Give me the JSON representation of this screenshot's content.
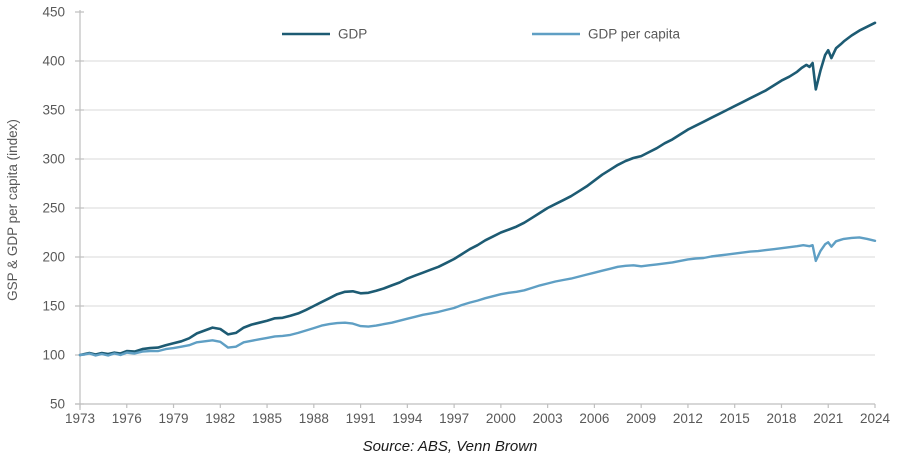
{
  "figure": {
    "source_caption": "Source: ABS, Venn Brown"
  },
  "chart_data": {
    "type": "line",
    "title": "",
    "xlabel": "",
    "ylabel": "GSP & GDP per capita (index)",
    "ylim": [
      50,
      450
    ],
    "ytick_step": 50,
    "yticks": [
      50,
      100,
      150,
      200,
      250,
      300,
      350,
      400,
      450
    ],
    "xlim": [
      1973,
      2024
    ],
    "xticks": [
      1973,
      1976,
      1979,
      1982,
      1985,
      1988,
      1991,
      1994,
      1997,
      2000,
      2003,
      2006,
      2009,
      2012,
      2015,
      2018,
      2021,
      2024
    ],
    "grid": "horizontal",
    "legend_position": "top-inside",
    "style": {
      "background": "#ffffff",
      "gridline_color": "#d9d9d9",
      "axis_color": "#bfbfbf",
      "tick_label_color": "#595959",
      "axis_title_color": "#595959",
      "gdp_color": "#1d5b73",
      "gdp_per_capita_color": "#5f9fc4"
    },
    "series": [
      {
        "name": "GDP",
        "color_key": "gdp_color",
        "stroke_width": 2.6,
        "points": [
          [
            1973.0,
            100
          ],
          [
            1973.3,
            101
          ],
          [
            1973.6,
            102
          ],
          [
            1974.0,
            100.5
          ],
          [
            1974.4,
            102
          ],
          [
            1974.8,
            101
          ],
          [
            1975.2,
            102.5
          ],
          [
            1975.6,
            101.5
          ],
          [
            1976.0,
            104
          ],
          [
            1976.5,
            103.5
          ],
          [
            1977.0,
            106
          ],
          [
            1977.5,
            107
          ],
          [
            1978.0,
            107.5
          ],
          [
            1978.5,
            110
          ],
          [
            1979.0,
            112
          ],
          [
            1979.5,
            114
          ],
          [
            1980.0,
            117
          ],
          [
            1980.5,
            122
          ],
          [
            1981.0,
            125
          ],
          [
            1981.5,
            128
          ],
          [
            1982.0,
            126.5
          ],
          [
            1982.5,
            121
          ],
          [
            1983.0,
            122.5
          ],
          [
            1983.5,
            128
          ],
          [
            1984.0,
            131
          ],
          [
            1984.5,
            133
          ],
          [
            1985.0,
            135
          ],
          [
            1985.5,
            137.5
          ],
          [
            1986.0,
            138
          ],
          [
            1986.5,
            140
          ],
          [
            1987.0,
            142.5
          ],
          [
            1987.5,
            146
          ],
          [
            1988.0,
            150
          ],
          [
            1988.5,
            154
          ],
          [
            1989.0,
            158
          ],
          [
            1989.5,
            162
          ],
          [
            1990.0,
            164.5
          ],
          [
            1990.5,
            165
          ],
          [
            1991.0,
            163
          ],
          [
            1991.5,
            163.5
          ],
          [
            1992.0,
            165.5
          ],
          [
            1992.5,
            168
          ],
          [
            1993.0,
            171
          ],
          [
            1993.5,
            174
          ],
          [
            1994.0,
            178
          ],
          [
            1994.5,
            181
          ],
          [
            1995.0,
            184
          ],
          [
            1995.5,
            187
          ],
          [
            1996.0,
            190
          ],
          [
            1996.5,
            194
          ],
          [
            1997.0,
            198
          ],
          [
            1997.5,
            203
          ],
          [
            1998.0,
            208
          ],
          [
            1998.5,
            212
          ],
          [
            1999.0,
            217
          ],
          [
            1999.5,
            221
          ],
          [
            2000.0,
            225
          ],
          [
            2000.5,
            228
          ],
          [
            2001.0,
            231
          ],
          [
            2001.5,
            235
          ],
          [
            2002.0,
            240
          ],
          [
            2002.5,
            245
          ],
          [
            2003.0,
            250
          ],
          [
            2003.5,
            254
          ],
          [
            2004.0,
            258
          ],
          [
            2004.5,
            262
          ],
          [
            2005.0,
            267
          ],
          [
            2005.5,
            272
          ],
          [
            2006.0,
            278
          ],
          [
            2006.5,
            284
          ],
          [
            2007.0,
            289
          ],
          [
            2007.5,
            294
          ],
          [
            2008.0,
            298
          ],
          [
            2008.5,
            301
          ],
          [
            2009.0,
            303
          ],
          [
            2009.5,
            307
          ],
          [
            2010.0,
            311
          ],
          [
            2010.5,
            316
          ],
          [
            2011.0,
            320
          ],
          [
            2011.5,
            325
          ],
          [
            2012.0,
            330
          ],
          [
            2012.5,
            334
          ],
          [
            2013.0,
            338
          ],
          [
            2013.5,
            342
          ],
          [
            2014.0,
            346
          ],
          [
            2014.5,
            350
          ],
          [
            2015.0,
            354
          ],
          [
            2015.5,
            358
          ],
          [
            2016.0,
            362
          ],
          [
            2016.5,
            366
          ],
          [
            2017.0,
            370
          ],
          [
            2017.5,
            375
          ],
          [
            2018.0,
            380
          ],
          [
            2018.5,
            384
          ],
          [
            2019.0,
            389
          ],
          [
            2019.3,
            393
          ],
          [
            2019.6,
            396
          ],
          [
            2019.8,
            394
          ],
          [
            2020.0,
            398
          ],
          [
            2020.2,
            371
          ],
          [
            2020.5,
            390
          ],
          [
            2020.8,
            406
          ],
          [
            2021.0,
            411
          ],
          [
            2021.2,
            403
          ],
          [
            2021.5,
            413
          ],
          [
            2021.8,
            417
          ],
          [
            2022.0,
            420
          ],
          [
            2022.5,
            426
          ],
          [
            2023.0,
            431
          ],
          [
            2023.5,
            435
          ],
          [
            2024.0,
            439
          ]
        ]
      },
      {
        "name": "GDP per capita",
        "color_key": "gdp_per_capita_color",
        "stroke_width": 2.4,
        "points": [
          [
            1973.0,
            100
          ],
          [
            1973.3,
            100.5
          ],
          [
            1973.6,
            101.5
          ],
          [
            1974.0,
            99.5
          ],
          [
            1974.4,
            101
          ],
          [
            1974.8,
            99.5
          ],
          [
            1975.2,
            101.5
          ],
          [
            1975.6,
            100
          ],
          [
            1976.0,
            102.5
          ],
          [
            1976.5,
            101.5
          ],
          [
            1977.0,
            103.5
          ],
          [
            1977.5,
            104
          ],
          [
            1978.0,
            104
          ],
          [
            1978.5,
            106
          ],
          [
            1979.0,
            107
          ],
          [
            1979.5,
            108.5
          ],
          [
            1980.0,
            110
          ],
          [
            1980.5,
            113
          ],
          [
            1981.0,
            114
          ],
          [
            1981.5,
            115
          ],
          [
            1982.0,
            113.5
          ],
          [
            1982.5,
            107.5
          ],
          [
            1983.0,
            108.5
          ],
          [
            1983.5,
            113
          ],
          [
            1984.0,
            114.5
          ],
          [
            1984.5,
            116
          ],
          [
            1985.0,
            117.5
          ],
          [
            1985.5,
            119
          ],
          [
            1986.0,
            119.5
          ],
          [
            1986.5,
            120.5
          ],
          [
            1987.0,
            122.5
          ],
          [
            1987.5,
            125
          ],
          [
            1988.0,
            127.5
          ],
          [
            1988.5,
            130
          ],
          [
            1989.0,
            131.5
          ],
          [
            1989.5,
            132.5
          ],
          [
            1990.0,
            133
          ],
          [
            1990.5,
            132
          ],
          [
            1991.0,
            129.5
          ],
          [
            1991.5,
            129
          ],
          [
            1992.0,
            130
          ],
          [
            1992.5,
            131.5
          ],
          [
            1993.0,
            133
          ],
          [
            1993.5,
            135
          ],
          [
            1994.0,
            137
          ],
          [
            1994.5,
            139
          ],
          [
            1995.0,
            141
          ],
          [
            1995.5,
            142.5
          ],
          [
            1996.0,
            144
          ],
          [
            1996.5,
            146
          ],
          [
            1997.0,
            148
          ],
          [
            1997.5,
            151
          ],
          [
            1998.0,
            153.5
          ],
          [
            1998.5,
            155.5
          ],
          [
            1999.0,
            158
          ],
          [
            1999.5,
            160
          ],
          [
            2000.0,
            162
          ],
          [
            2000.5,
            163.5
          ],
          [
            2001.0,
            164.5
          ],
          [
            2001.5,
            166
          ],
          [
            2002.0,
            168.5
          ],
          [
            2002.5,
            171
          ],
          [
            2003.0,
            173
          ],
          [
            2003.5,
            175
          ],
          [
            2004.0,
            176.5
          ],
          [
            2004.5,
            178
          ],
          [
            2005.0,
            180
          ],
          [
            2005.5,
            182
          ],
          [
            2006.0,
            184
          ],
          [
            2006.5,
            186
          ],
          [
            2007.0,
            188
          ],
          [
            2007.5,
            190
          ],
          [
            2008.0,
            191
          ],
          [
            2008.5,
            191.5
          ],
          [
            2009.0,
            190.5
          ],
          [
            2009.5,
            191.5
          ],
          [
            2010.0,
            192.5
          ],
          [
            2010.5,
            193.5
          ],
          [
            2011.0,
            194.5
          ],
          [
            2011.5,
            196
          ],
          [
            2012.0,
            197.5
          ],
          [
            2012.5,
            198.5
          ],
          [
            2013.0,
            199
          ],
          [
            2013.5,
            200.5
          ],
          [
            2014.0,
            201.5
          ],
          [
            2014.5,
            202.5
          ],
          [
            2015.0,
            203.5
          ],
          [
            2015.5,
            204.5
          ],
          [
            2016.0,
            205.5
          ],
          [
            2016.5,
            206
          ],
          [
            2017.0,
            207
          ],
          [
            2017.5,
            208
          ],
          [
            2018.0,
            209
          ],
          [
            2018.5,
            210
          ],
          [
            2019.0,
            211
          ],
          [
            2019.4,
            212
          ],
          [
            2019.8,
            211
          ],
          [
            2020.0,
            212
          ],
          [
            2020.2,
            196
          ],
          [
            2020.5,
            206
          ],
          [
            2020.8,
            213
          ],
          [
            2021.0,
            215
          ],
          [
            2021.2,
            210.5
          ],
          [
            2021.5,
            216
          ],
          [
            2021.8,
            217.5
          ],
          [
            2022.0,
            218.5
          ],
          [
            2022.5,
            219.5
          ],
          [
            2023.0,
            220
          ],
          [
            2023.5,
            218.5
          ],
          [
            2024.0,
            216.5
          ]
        ]
      }
    ]
  }
}
